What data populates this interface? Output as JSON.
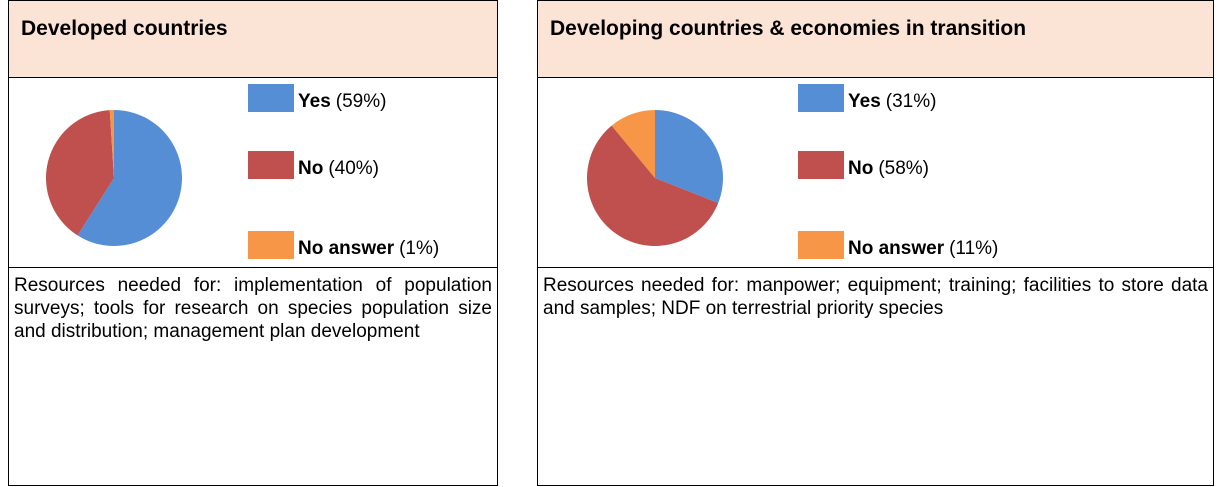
{
  "panels": [
    {
      "title": "Developed countries",
      "text": "Resources needed for: implementation of population surveys; tools for research on species population size and distribution; management plan development"
    },
    {
      "title": "Developing countries & economies in transition",
      "text": "Resources needed for: manpower; equipment; training; facilities to store data and samples; NDF on terrestrial priority species"
    }
  ],
  "chart_data": [
    {
      "type": "pie",
      "categories": [
        "Yes",
        "No",
        "No answer"
      ],
      "values": [
        59,
        40,
        1
      ],
      "value_labels": [
        "(59%)",
        "(40%)",
        "(1%)"
      ],
      "colors": [
        "#558ed5",
        "#c0504d",
        "#f79646"
      ]
    },
    {
      "type": "pie",
      "categories": [
        "Yes",
        "No",
        "No answer"
      ],
      "values": [
        31,
        58,
        11
      ],
      "value_labels": [
        "(31%)",
        "(58%)",
        "(11%)"
      ],
      "colors": [
        "#558ed5",
        "#c0504d",
        "#f79646"
      ]
    }
  ]
}
